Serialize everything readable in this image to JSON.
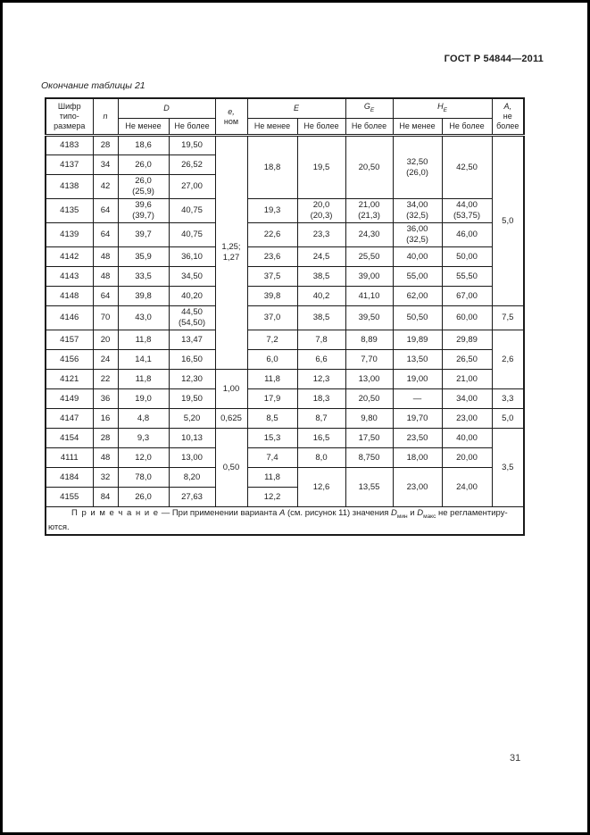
{
  "page": {
    "doc_ref": "ГОСТ Р 54844—2011",
    "table_caption": "Окончание таблицы 21",
    "page_number": "31"
  },
  "table": {
    "header": {
      "code": "Шифр\nтипо-\nразмера",
      "n": "n",
      "d": "D",
      "e_var": "е,",
      "e_rest": "ном",
      "e_cap": "E",
      "g": "G",
      "g_sub": "E",
      "h": "H",
      "h_sub": "E",
      "a_var": "А,",
      "a_rest": "не\nболее",
      "min": "Не менее",
      "max": "Не более"
    },
    "rows": [
      [
        {
          "t": "4183"
        },
        {
          "t": "28"
        },
        {
          "t": "18,6"
        },
        {
          "t": "19,50"
        },
        {
          "t": "1,25;\n1,27",
          "rs": 11
        },
        {
          "t": "18,8",
          "rs": 3
        },
        {
          "t": "19,5",
          "rs": 3
        },
        {
          "t": "20,50",
          "rs": 3
        },
        {
          "t": "32,50\n(26,0)",
          "rs": 3
        },
        {
          "t": "42,50",
          "rs": 3
        },
        {
          "t": "5,0",
          "rs": 8
        }
      ],
      [
        {
          "t": "4137"
        },
        {
          "t": "34"
        },
        {
          "t": "26,0"
        },
        {
          "t": "26,52"
        }
      ],
      [
        {
          "t": "4138"
        },
        {
          "t": "42"
        },
        {
          "t": "26,0\n(25,9)"
        },
        {
          "t": "27,00"
        }
      ],
      [
        {
          "t": "4135"
        },
        {
          "t": "64"
        },
        {
          "t": "39,6\n(39,7)"
        },
        {
          "t": "40,75"
        },
        {
          "t": "19,3"
        },
        {
          "t": "20,0\n(20,3)"
        },
        {
          "t": "21,00\n(21,3)"
        },
        {
          "t": "34,00\n(32,5)"
        },
        {
          "t": "44,00\n(53,75)"
        }
      ],
      [
        {
          "t": "4139"
        },
        {
          "t": "64"
        },
        {
          "t": "39,7"
        },
        {
          "t": "40,75"
        },
        {
          "t": "22,6"
        },
        {
          "t": "23,3"
        },
        {
          "t": "24,30"
        },
        {
          "t": "36,00\n(32,5)"
        },
        {
          "t": "46,00"
        }
      ],
      [
        {
          "t": "4142"
        },
        {
          "t": "48"
        },
        {
          "t": "35,9"
        },
        {
          "t": "36,10"
        },
        {
          "t": "23,6"
        },
        {
          "t": "24,5"
        },
        {
          "t": "25,50"
        },
        {
          "t": "40,00"
        },
        {
          "t": "50,00"
        }
      ],
      [
        {
          "t": "4143"
        },
        {
          "t": "48"
        },
        {
          "t": "33,5"
        },
        {
          "t": "34,50"
        },
        {
          "t": "37,5"
        },
        {
          "t": "38,5"
        },
        {
          "t": "39,00"
        },
        {
          "t": "55,00"
        },
        {
          "t": "55,50"
        }
      ],
      [
        {
          "t": "4148"
        },
        {
          "t": "64"
        },
        {
          "t": "39,8"
        },
        {
          "t": "40,20"
        },
        {
          "t": "39,8"
        },
        {
          "t": "40,2"
        },
        {
          "t": "41,10"
        },
        {
          "t": "62,00"
        },
        {
          "t": "67,00"
        }
      ],
      [
        {
          "t": "4146"
        },
        {
          "t": "70"
        },
        {
          "t": "43,0"
        },
        {
          "t": "44,50\n(54,50)"
        },
        {
          "t": "37,0"
        },
        {
          "t": "38,5"
        },
        {
          "t": "39,50"
        },
        {
          "t": "50,50"
        },
        {
          "t": "60,00"
        },
        {
          "t": "7,5"
        }
      ],
      [
        {
          "t": "4157"
        },
        {
          "t": "20"
        },
        {
          "t": "11,8"
        },
        {
          "t": "13,47"
        },
        {
          "t": "7,2"
        },
        {
          "t": "7,8"
        },
        {
          "t": "8,89"
        },
        {
          "t": "19,89"
        },
        {
          "t": "29,89"
        },
        {
          "t": "2,6",
          "rs": 3
        }
      ],
      [
        {
          "t": "4156"
        },
        {
          "t": "24"
        },
        {
          "t": "14,1"
        },
        {
          "t": "16,50"
        },
        {
          "t": "6,0"
        },
        {
          "t": "6,6"
        },
        {
          "t": "7,70"
        },
        {
          "t": "13,50"
        },
        {
          "t": "26,50"
        }
      ],
      [
        {
          "t": "4121"
        },
        {
          "t": "22"
        },
        {
          "t": "11,8"
        },
        {
          "t": "12,30"
        },
        {
          "t": "1,00",
          "rs": 2
        },
        {
          "t": "11,8"
        },
        {
          "t": "12,3"
        },
        {
          "t": "13,00"
        },
        {
          "t": "19,00"
        },
        {
          "t": "21,00"
        }
      ],
      [
        {
          "t": "4149"
        },
        {
          "t": "36"
        },
        {
          "t": "19,0"
        },
        {
          "t": "19,50"
        },
        {
          "t": "17,9"
        },
        {
          "t": "18,3"
        },
        {
          "t": "20,50"
        },
        {
          "t": "—"
        },
        {
          "t": "34,00"
        },
        {
          "t": "3,3"
        }
      ],
      [
        {
          "t": "4147"
        },
        {
          "t": "16"
        },
        {
          "t": "4,8"
        },
        {
          "t": "5,20"
        },
        {
          "t": "0,625"
        },
        {
          "t": "8,5"
        },
        {
          "t": "8,7"
        },
        {
          "t": "9,80"
        },
        {
          "t": "19,70"
        },
        {
          "t": "23,00"
        },
        {
          "t": "5,0"
        }
      ],
      [
        {
          "t": "4154"
        },
        {
          "t": "28"
        },
        {
          "t": "9,3"
        },
        {
          "t": "10,13"
        },
        {
          "t": "0,50",
          "rs": 4
        },
        {
          "t": "15,3"
        },
        {
          "t": "16,5"
        },
        {
          "t": "17,50"
        },
        {
          "t": "23,50"
        },
        {
          "t": "40,00"
        },
        {
          "t": "3,5",
          "rs": 4
        }
      ],
      [
        {
          "t": "4111"
        },
        {
          "t": "48"
        },
        {
          "t": "12,0"
        },
        {
          "t": "13,00"
        },
        {
          "t": "7,4"
        },
        {
          "t": "8,0"
        },
        {
          "t": "8,750"
        },
        {
          "t": "18,00"
        },
        {
          "t": "20,00"
        }
      ],
      [
        {
          "t": "4184"
        },
        {
          "t": "32"
        },
        {
          "t": "78,0"
        },
        {
          "t": "8,20"
        },
        {
          "t": "11,8"
        },
        {
          "t": "12,6",
          "rs": 2
        },
        {
          "t": "13,55",
          "rs": 2
        },
        {
          "t": "23,00",
          "rs": 2
        },
        {
          "t": "24,00",
          "rs": 2
        }
      ],
      [
        {
          "t": "4155"
        },
        {
          "t": "84"
        },
        {
          "t": "26,0"
        },
        {
          "t": "27,63"
        },
        {
          "t": "12,2"
        }
      ]
    ]
  },
  "note": {
    "label": "П р и м е ч а н и е",
    "t1": " — При применении варианта ",
    "var_a": "А",
    "t2": " (см. рисунок 11) значения ",
    "d1": "D",
    "d1_sub": "мин",
    "t3": " и ",
    "d2": "D",
    "d2_sub": "макс",
    "t4": " не регламентиру-",
    "t5": "ются."
  }
}
